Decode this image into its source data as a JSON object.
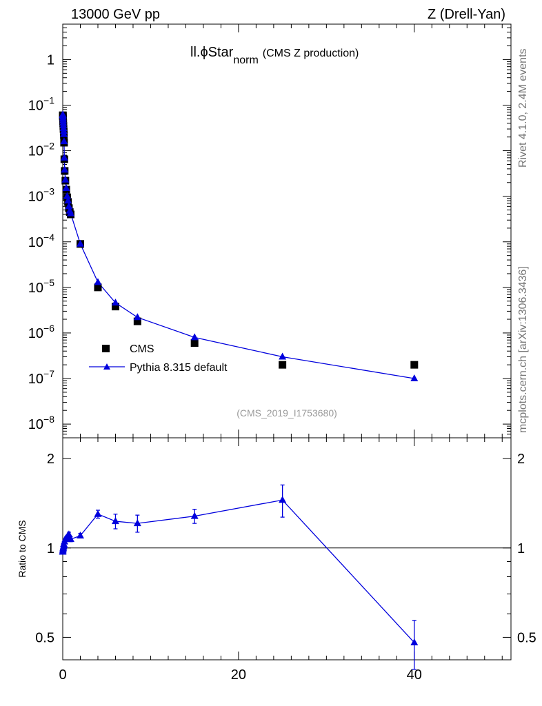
{
  "header": {
    "left": "13000 GeV pp",
    "right": "Z (Drell-Yan)"
  },
  "side": {
    "rivet": "Rivet 4.1.0,  2.4M events",
    "mcplots": "mcplots.cern.ch [arXiv:1306.3436]"
  },
  "chart_data": {
    "type": "scatter",
    "title": {
      "main": "ll.ϕStar",
      "subscript": "norm",
      "suffix": "(CMS Z production)"
    },
    "reference": "(CMS_2019_I1753680)",
    "xlim": [
      0,
      51
    ],
    "xticks": [
      "0",
      "20",
      "40"
    ],
    "main_panel": {
      "yscale": "log",
      "ylim": [
        5e-09,
        6
      ],
      "yticks": [
        {
          "value": 1,
          "base": "1",
          "exp": ""
        },
        {
          "value": 0.1,
          "base": "10",
          "exp": "−1"
        },
        {
          "value": 0.01,
          "base": "10",
          "exp": "−2"
        },
        {
          "value": 0.001,
          "base": "10",
          "exp": "−3"
        },
        {
          "value": 0.0001,
          "base": "10",
          "exp": "−4"
        },
        {
          "value": 1e-05,
          "base": "10",
          "exp": "−5"
        },
        {
          "value": 1e-06,
          "base": "10",
          "exp": "−6"
        },
        {
          "value": 1e-07,
          "base": "10",
          "exp": "−7"
        },
        {
          "value": 1e-08,
          "base": "10",
          "exp": "−8"
        }
      ],
      "series": [
        {
          "name": "CMS",
          "marker": "square",
          "color": "#000000",
          "x": [
            0.005,
            0.015,
            0.025,
            0.035,
            0.045,
            0.055,
            0.07,
            0.09,
            0.11,
            0.13,
            0.15,
            0.18,
            0.22,
            0.3,
            0.4,
            0.5,
            0.6,
            0.7,
            0.8,
            0.9,
            2.0,
            4.0,
            6.0,
            8.5,
            15.0,
            25.0,
            40.0
          ],
          "y": [
            0.06,
            0.058,
            0.055,
            0.05,
            0.045,
            0.04,
            0.035,
            0.03,
            0.026,
            0.022,
            0.015,
            0.0065,
            0.0036,
            0.0022,
            0.0014,
            0.00095,
            0.00075,
            0.00055,
            0.00045,
            0.0004,
            9e-05,
            1e-05,
            3.8e-06,
            1.8e-06,
            6e-07,
            2e-07,
            2e-07
          ]
        },
        {
          "name": "Pythia 8.315 default",
          "marker": "triangle",
          "color": "#0000dd",
          "x": [
            0.005,
            0.015,
            0.025,
            0.035,
            0.045,
            0.055,
            0.07,
            0.09,
            0.11,
            0.13,
            0.15,
            0.18,
            0.22,
            0.3,
            0.4,
            0.5,
            0.6,
            0.7,
            0.8,
            0.9,
            2.0,
            4.0,
            6.0,
            8.5,
            15.0,
            25.0,
            40.0
          ],
          "y": [
            0.062,
            0.06,
            0.056,
            0.051,
            0.046,
            0.041,
            0.036,
            0.031,
            0.027,
            0.023,
            0.016,
            0.007,
            0.0038,
            0.0023,
            0.0015,
            0.001,
            0.0008,
            0.0006,
            0.00048,
            0.00042,
            9e-05,
            1.3e-05,
            4.6e-06,
            2.2e-06,
            8e-07,
            3e-07,
            1e-07
          ]
        }
      ]
    },
    "ratio_panel": {
      "ylabel": "Ratio to CMS",
      "yscale": "log",
      "ylim": [
        0.42,
        2.35
      ],
      "yticks": [
        {
          "value": 2,
          "label": "2"
        },
        {
          "value": 1,
          "label": "1"
        },
        {
          "value": 0.5,
          "label": "0.5"
        }
      ],
      "series": [
        {
          "name": "Pythia 8.315 default",
          "color": "#0000dd",
          "x": [
            0.005,
            0.02,
            0.04,
            0.06,
            0.09,
            0.12,
            0.15,
            0.2,
            0.3,
            0.4,
            0.5,
            0.7,
            0.9,
            2.0,
            4.0,
            6.0,
            8.5,
            15.0,
            25.0,
            40.0
          ],
          "y": [
            0.97,
            0.98,
            0.99,
            1.0,
            1.01,
            1.03,
            1.02,
            1.05,
            1.07,
            1.08,
            1.09,
            1.11,
            1.07,
            1.1,
            1.3,
            1.23,
            1.21,
            1.28,
            1.45,
            0.48
          ],
          "err": [
            0.01,
            0.01,
            0.01,
            0.01,
            0.01,
            0.01,
            0.01,
            0.01,
            0.01,
            0.01,
            0.01,
            0.02,
            0.02,
            0.02,
            0.04,
            0.07,
            0.08,
            0.07,
            0.18,
            0.09
          ]
        }
      ]
    }
  }
}
